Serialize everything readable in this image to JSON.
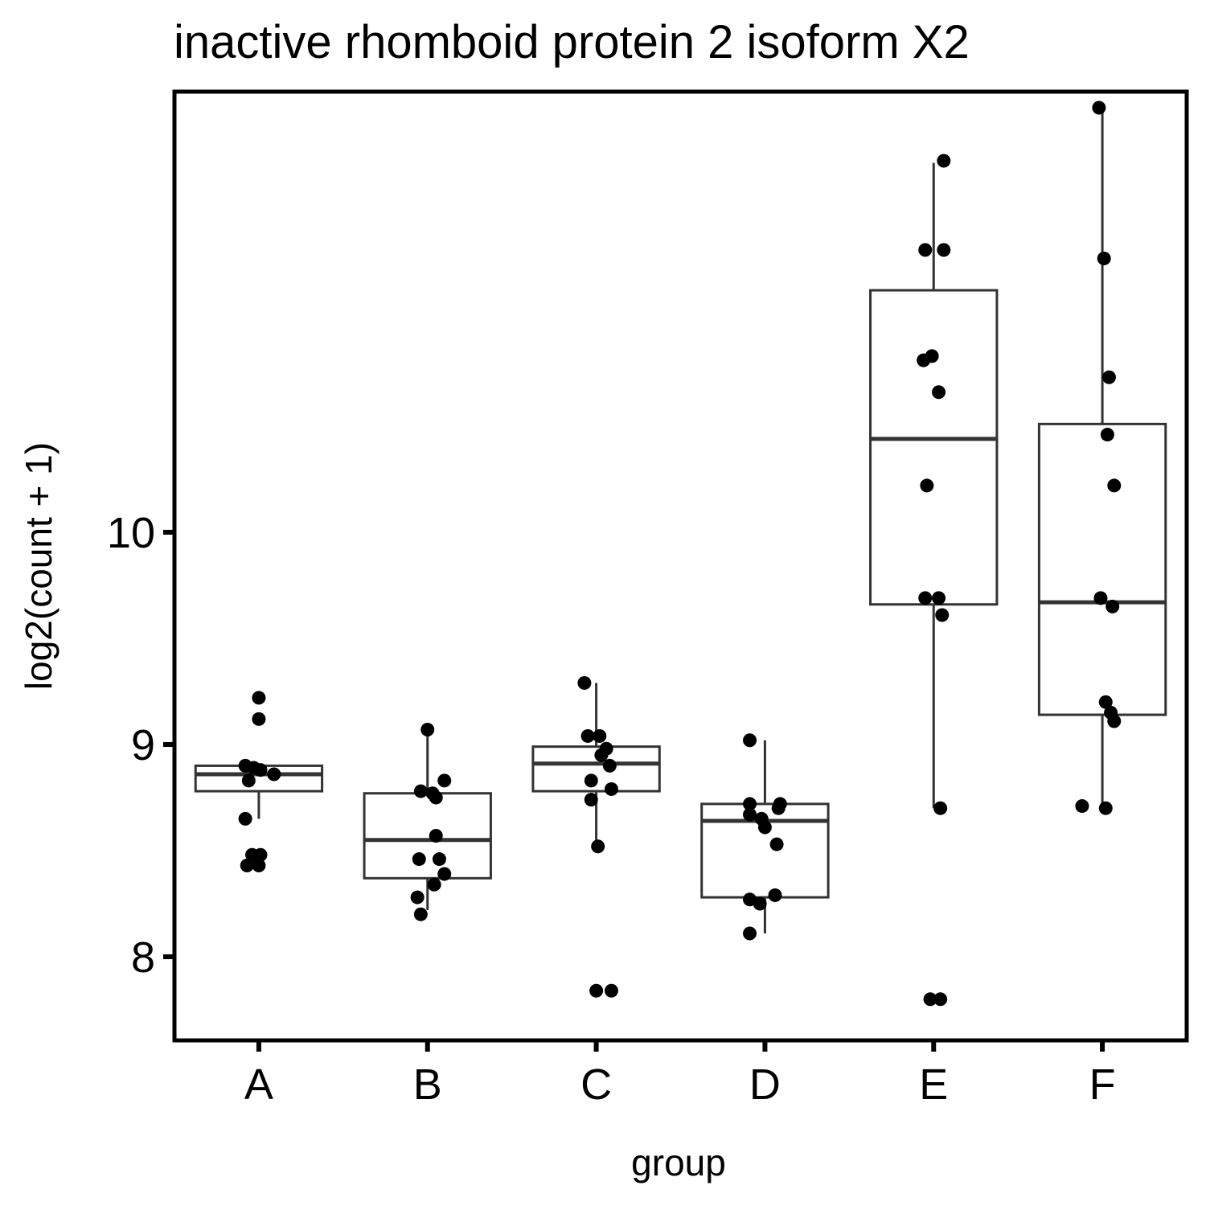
{
  "chart_data": {
    "type": "box",
    "title": "inactive rhomboid protein 2 isoform X2",
    "xlabel": "group",
    "ylabel": "log2(count + 1)",
    "categories": [
      "A",
      "B",
      "C",
      "D",
      "E",
      "F"
    ],
    "y_ticks": [
      8,
      9,
      10
    ],
    "ylim": [
      7.6,
      12.1
    ],
    "grid": false,
    "legend": "none",
    "boxes": [
      {
        "group": "A",
        "whisker_low": 8.65,
        "q1": 8.78,
        "median": 8.86,
        "q3": 8.9,
        "whisker_high": 8.9
      },
      {
        "group": "B",
        "whisker_low": 8.22,
        "q1": 8.37,
        "median": 8.55,
        "q3": 8.77,
        "whisker_high": 9.07
      },
      {
        "group": "C",
        "whisker_low": 8.52,
        "q1": 8.78,
        "median": 8.91,
        "q3": 8.99,
        "whisker_high": 9.29
      },
      {
        "group": "D",
        "whisker_low": 8.11,
        "q1": 8.28,
        "median": 8.64,
        "q3": 8.72,
        "whisker_high": 9.02
      },
      {
        "group": "E",
        "whisker_low": 8.7,
        "q1": 9.66,
        "median": 10.44,
        "q3": 11.14,
        "whisker_high": 11.74
      },
      {
        "group": "F",
        "whisker_low": 8.7,
        "q1": 9.14,
        "median": 9.67,
        "q3": 10.51,
        "whisker_high": 12.0
      }
    ],
    "points": [
      {
        "group": "A",
        "x_offset": 0.0,
        "y": 9.22
      },
      {
        "group": "A",
        "x_offset": 0.0,
        "y": 9.12
      },
      {
        "group": "A",
        "x_offset": -0.08,
        "y": 8.9
      },
      {
        "group": "A",
        "x_offset": -0.03,
        "y": 8.89
      },
      {
        "group": "A",
        "x_offset": 0.01,
        "y": 8.88
      },
      {
        "group": "A",
        "x_offset": 0.09,
        "y": 8.86
      },
      {
        "group": "A",
        "x_offset": -0.06,
        "y": 8.83
      },
      {
        "group": "A",
        "x_offset": -0.08,
        "y": 8.65
      },
      {
        "group": "A",
        "x_offset": -0.04,
        "y": 8.48
      },
      {
        "group": "A",
        "x_offset": 0.01,
        "y": 8.48
      },
      {
        "group": "A",
        "x_offset": -0.07,
        "y": 8.43
      },
      {
        "group": "A",
        "x_offset": 0.0,
        "y": 8.43
      },
      {
        "group": "B",
        "x_offset": 0.0,
        "y": 9.07
      },
      {
        "group": "B",
        "x_offset": 0.1,
        "y": 8.83
      },
      {
        "group": "B",
        "x_offset": -0.04,
        "y": 8.78
      },
      {
        "group": "B",
        "x_offset": 0.03,
        "y": 8.77
      },
      {
        "group": "B",
        "x_offset": 0.05,
        "y": 8.75
      },
      {
        "group": "B",
        "x_offset": 0.05,
        "y": 8.57
      },
      {
        "group": "B",
        "x_offset": -0.05,
        "y": 8.46
      },
      {
        "group": "B",
        "x_offset": 0.07,
        "y": 8.46
      },
      {
        "group": "B",
        "x_offset": 0.1,
        "y": 8.39
      },
      {
        "group": "B",
        "x_offset": 0.04,
        "y": 8.34
      },
      {
        "group": "B",
        "x_offset": -0.06,
        "y": 8.28
      },
      {
        "group": "B",
        "x_offset": -0.04,
        "y": 8.2
      },
      {
        "group": "C",
        "x_offset": -0.07,
        "y": 9.29
      },
      {
        "group": "C",
        "x_offset": -0.05,
        "y": 9.04
      },
      {
        "group": "C",
        "x_offset": 0.02,
        "y": 9.04
      },
      {
        "group": "C",
        "x_offset": 0.06,
        "y": 8.98
      },
      {
        "group": "C",
        "x_offset": 0.03,
        "y": 8.95
      },
      {
        "group": "C",
        "x_offset": 0.08,
        "y": 8.9
      },
      {
        "group": "C",
        "x_offset": -0.03,
        "y": 8.83
      },
      {
        "group": "C",
        "x_offset": 0.09,
        "y": 8.79
      },
      {
        "group": "C",
        "x_offset": -0.03,
        "y": 8.74
      },
      {
        "group": "C",
        "x_offset": 0.01,
        "y": 8.52
      },
      {
        "group": "C",
        "x_offset": 0.0,
        "y": 7.84
      },
      {
        "group": "C",
        "x_offset": 0.09,
        "y": 7.84
      },
      {
        "group": "D",
        "x_offset": -0.09,
        "y": 9.02
      },
      {
        "group": "D",
        "x_offset": -0.09,
        "y": 8.72
      },
      {
        "group": "D",
        "x_offset": 0.09,
        "y": 8.72
      },
      {
        "group": "D",
        "x_offset": 0.08,
        "y": 8.7
      },
      {
        "group": "D",
        "x_offset": -0.09,
        "y": 8.67
      },
      {
        "group": "D",
        "x_offset": -0.02,
        "y": 8.65
      },
      {
        "group": "D",
        "x_offset": 0.0,
        "y": 8.61
      },
      {
        "group": "D",
        "x_offset": 0.07,
        "y": 8.53
      },
      {
        "group": "D",
        "x_offset": 0.06,
        "y": 8.29
      },
      {
        "group": "D",
        "x_offset": -0.09,
        "y": 8.27
      },
      {
        "group": "D",
        "x_offset": -0.03,
        "y": 8.25
      },
      {
        "group": "D",
        "x_offset": -0.09,
        "y": 8.11
      },
      {
        "group": "E",
        "x_offset": 0.06,
        "y": 11.75
      },
      {
        "group": "E",
        "x_offset": -0.05,
        "y": 11.33
      },
      {
        "group": "E",
        "x_offset": 0.06,
        "y": 11.33
      },
      {
        "group": "E",
        "x_offset": -0.01,
        "y": 10.83
      },
      {
        "group": "E",
        "x_offset": -0.06,
        "y": 10.81
      },
      {
        "group": "E",
        "x_offset": 0.03,
        "y": 10.66
      },
      {
        "group": "E",
        "x_offset": -0.04,
        "y": 10.22
      },
      {
        "group": "E",
        "x_offset": -0.05,
        "y": 9.69
      },
      {
        "group": "E",
        "x_offset": 0.03,
        "y": 9.69
      },
      {
        "group": "E",
        "x_offset": 0.05,
        "y": 9.61
      },
      {
        "group": "E",
        "x_offset": 0.04,
        "y": 8.7
      },
      {
        "group": "E",
        "x_offset": -0.02,
        "y": 7.8
      },
      {
        "group": "E",
        "x_offset": 0.04,
        "y": 7.8
      },
      {
        "group": "F",
        "x_offset": -0.02,
        "y": 12.0
      },
      {
        "group": "F",
        "x_offset": 0.01,
        "y": 11.29
      },
      {
        "group": "F",
        "x_offset": 0.04,
        "y": 10.73
      },
      {
        "group": "F",
        "x_offset": 0.03,
        "y": 10.46
      },
      {
        "group": "F",
        "x_offset": 0.07,
        "y": 10.22
      },
      {
        "group": "F",
        "x_offset": -0.01,
        "y": 9.69
      },
      {
        "group": "F",
        "x_offset": 0.06,
        "y": 9.65
      },
      {
        "group": "F",
        "x_offset": 0.02,
        "y": 9.2
      },
      {
        "group": "F",
        "x_offset": 0.05,
        "y": 9.15
      },
      {
        "group": "F",
        "x_offset": 0.07,
        "y": 9.11
      },
      {
        "group": "F",
        "x_offset": -0.12,
        "y": 8.71
      },
      {
        "group": "F",
        "x_offset": 0.02,
        "y": 8.7
      }
    ]
  }
}
